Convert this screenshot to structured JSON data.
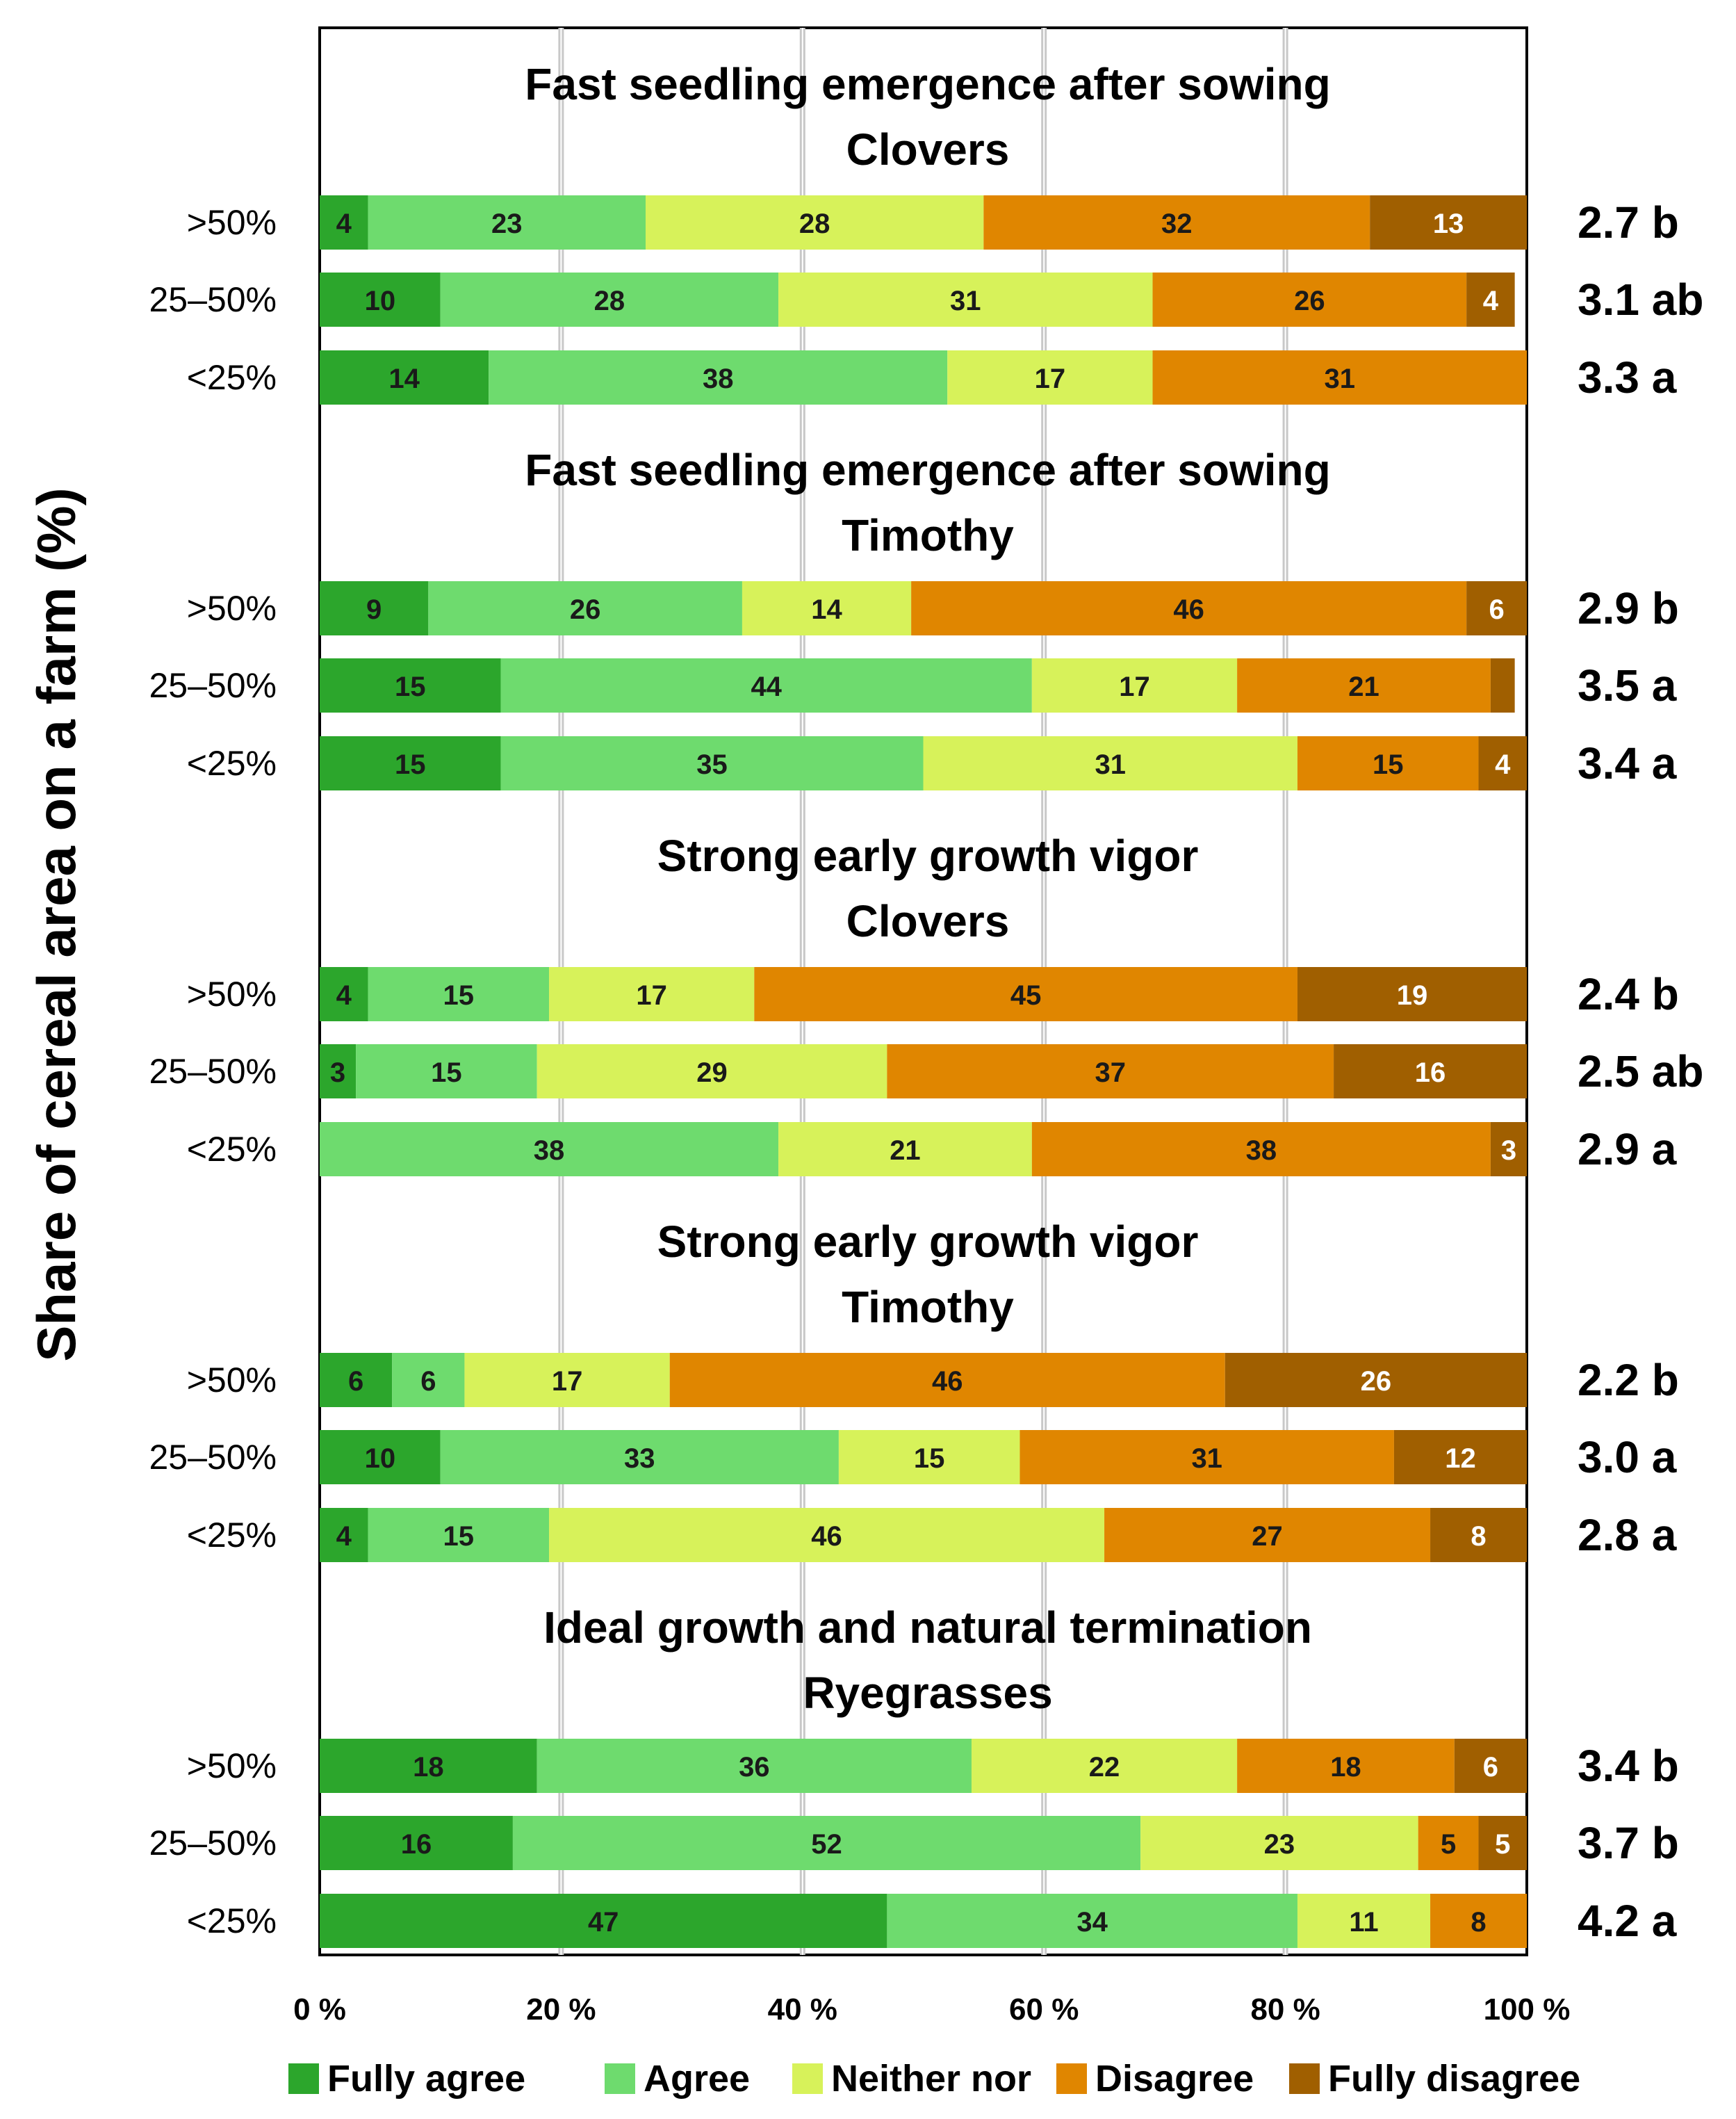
{
  "chart_data": {
    "type": "bar",
    "orientation": "horizontal",
    "stacked": "percent",
    "ylabel": "Share of cereal area on a farm (%)",
    "xlabel": "",
    "xlim": [
      0,
      100
    ],
    "x_ticks": [
      "0 %",
      "20 %",
      "40 %",
      "60 %",
      "80 %",
      "100 %"
    ],
    "grid": "vertical",
    "legend_position": "bottom",
    "series": [
      {
        "name": "Fully agree",
        "color": "#2ca62c"
      },
      {
        "name": "Agree",
        "color": "#6edb6e"
      },
      {
        "name": "Neither nor",
        "color": "#d7f25a"
      },
      {
        "name": "Disagree",
        "color": "#e08600"
      },
      {
        "name": "Fully disagree",
        "color": "#a05f00"
      }
    ],
    "panels": [
      {
        "title": [
          "Fast seedling emergence after sowing",
          "Clovers"
        ],
        "rows": [
          {
            "category": ">50%",
            "values": [
              4,
              23,
              28,
              32,
              13
            ],
            "labels": [
              "4",
              "23",
              "28",
              "32",
              "13"
            ],
            "mean": "2.7 b"
          },
          {
            "category": "25–50%",
            "values": [
              10,
              28,
              31,
              26,
              4
            ],
            "labels": [
              "10",
              "28",
              "31",
              "26",
              "4"
            ],
            "mean": "3.1 ab"
          },
          {
            "category": "<25%",
            "values": [
              14,
              38,
              17,
              31,
              0
            ],
            "labels": [
              "14",
              "38",
              "17",
              "31",
              ""
            ],
            "mean": "3.3 a"
          }
        ]
      },
      {
        "title": [
          "Fast seedling emergence after sowing",
          "Timothy"
        ],
        "rows": [
          {
            "category": ">50%",
            "values": [
              9,
              26,
              14,
              46,
              6
            ],
            "labels": [
              "9",
              "26",
              "14",
              "46",
              "6"
            ],
            "mean": "2.9 b"
          },
          {
            "category": "25–50%",
            "values": [
              15,
              44,
              17,
              21,
              2
            ],
            "labels": [
              "15",
              "44",
              "17",
              "21",
              ""
            ],
            "mean": "3.5 a"
          },
          {
            "category": "<25%",
            "values": [
              15,
              35,
              31,
              15,
              4
            ],
            "labels": [
              "15",
              "35",
              "31",
              "15",
              "4"
            ],
            "mean": "3.4 a"
          }
        ]
      },
      {
        "title": [
          "Strong early growth vigor",
          "Clovers"
        ],
        "rows": [
          {
            "category": ">50%",
            "values": [
              4,
              15,
              17,
              45,
              19
            ],
            "labels": [
              "4",
              "15",
              "17",
              "45",
              "19"
            ],
            "mean": "2.4 b"
          },
          {
            "category": "25–50%",
            "values": [
              3,
              15,
              29,
              37,
              16
            ],
            "labels": [
              "3",
              "15",
              "29",
              "37",
              "16"
            ],
            "mean": "2.5 ab"
          },
          {
            "category": "<25%",
            "values": [
              0,
              38,
              21,
              38,
              3
            ],
            "labels": [
              "",
              "38",
              "21",
              "38",
              "3"
            ],
            "mean": "2.9 a"
          }
        ]
      },
      {
        "title": [
          "Strong early growth vigor",
          "Timothy"
        ],
        "rows": [
          {
            "category": ">50%",
            "values": [
              6,
              6,
              17,
              46,
              26
            ],
            "labels": [
              "6",
              "6",
              "17",
              "46",
              "26"
            ],
            "mean": "2.2 b"
          },
          {
            "category": "25–50%",
            "values": [
              10,
              33,
              15,
              31,
              12
            ],
            "labels": [
              "10",
              "33",
              "15",
              "31",
              "12"
            ],
            "mean": "3.0 a"
          },
          {
            "category": "<25%",
            "values": [
              4,
              15,
              46,
              27,
              8
            ],
            "labels": [
              "4",
              "15",
              "46",
              "27",
              "8"
            ],
            "mean": "2.8 a"
          }
        ]
      },
      {
        "title": [
          "Ideal growth and natural termination",
          "Ryegrasses"
        ],
        "rows": [
          {
            "category": ">50%",
            "values": [
              18,
              36,
              22,
              18,
              6
            ],
            "labels": [
              "18",
              "36",
              "22",
              "18",
              "6"
            ],
            "mean": "3.4 b"
          },
          {
            "category": "25–50%",
            "values": [
              16,
              52,
              23,
              5,
              5
            ],
            "labels": [
              "16",
              "52",
              "23",
              "5",
              "5"
            ],
            "mean": "3.7 b"
          },
          {
            "category": "<25%",
            "values": [
              47,
              34,
              11,
              8,
              0
            ],
            "labels": [
              "47",
              "34",
              "11",
              "8",
              ""
            ],
            "mean": "4.2 a"
          }
        ]
      }
    ]
  }
}
